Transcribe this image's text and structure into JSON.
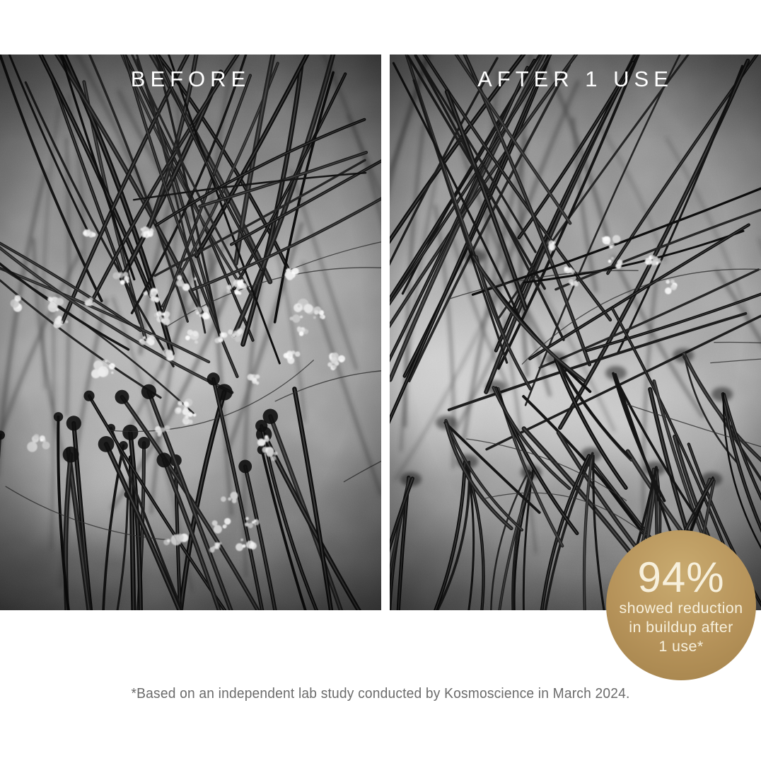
{
  "panels": [
    {
      "label": "BEFORE"
    },
    {
      "label": "AFTER 1 USE"
    }
  ],
  "badge": {
    "stat": "94%",
    "lines": [
      "showed reduction",
      "in buildup after",
      "1 use*"
    ]
  },
  "footnote": "*Based on an independent lab study conducted by Kosmoscience in March 2024.",
  "colors": {
    "background": "#ffffff",
    "badge_gold": "#b6935a",
    "badge_gold_light": "#c9ab70",
    "badge_gold_dark": "#a2814a",
    "badge_text": "#f7f0dc",
    "panel_label_text": "#ffffff",
    "footnote_text": "#6b6b6b"
  }
}
